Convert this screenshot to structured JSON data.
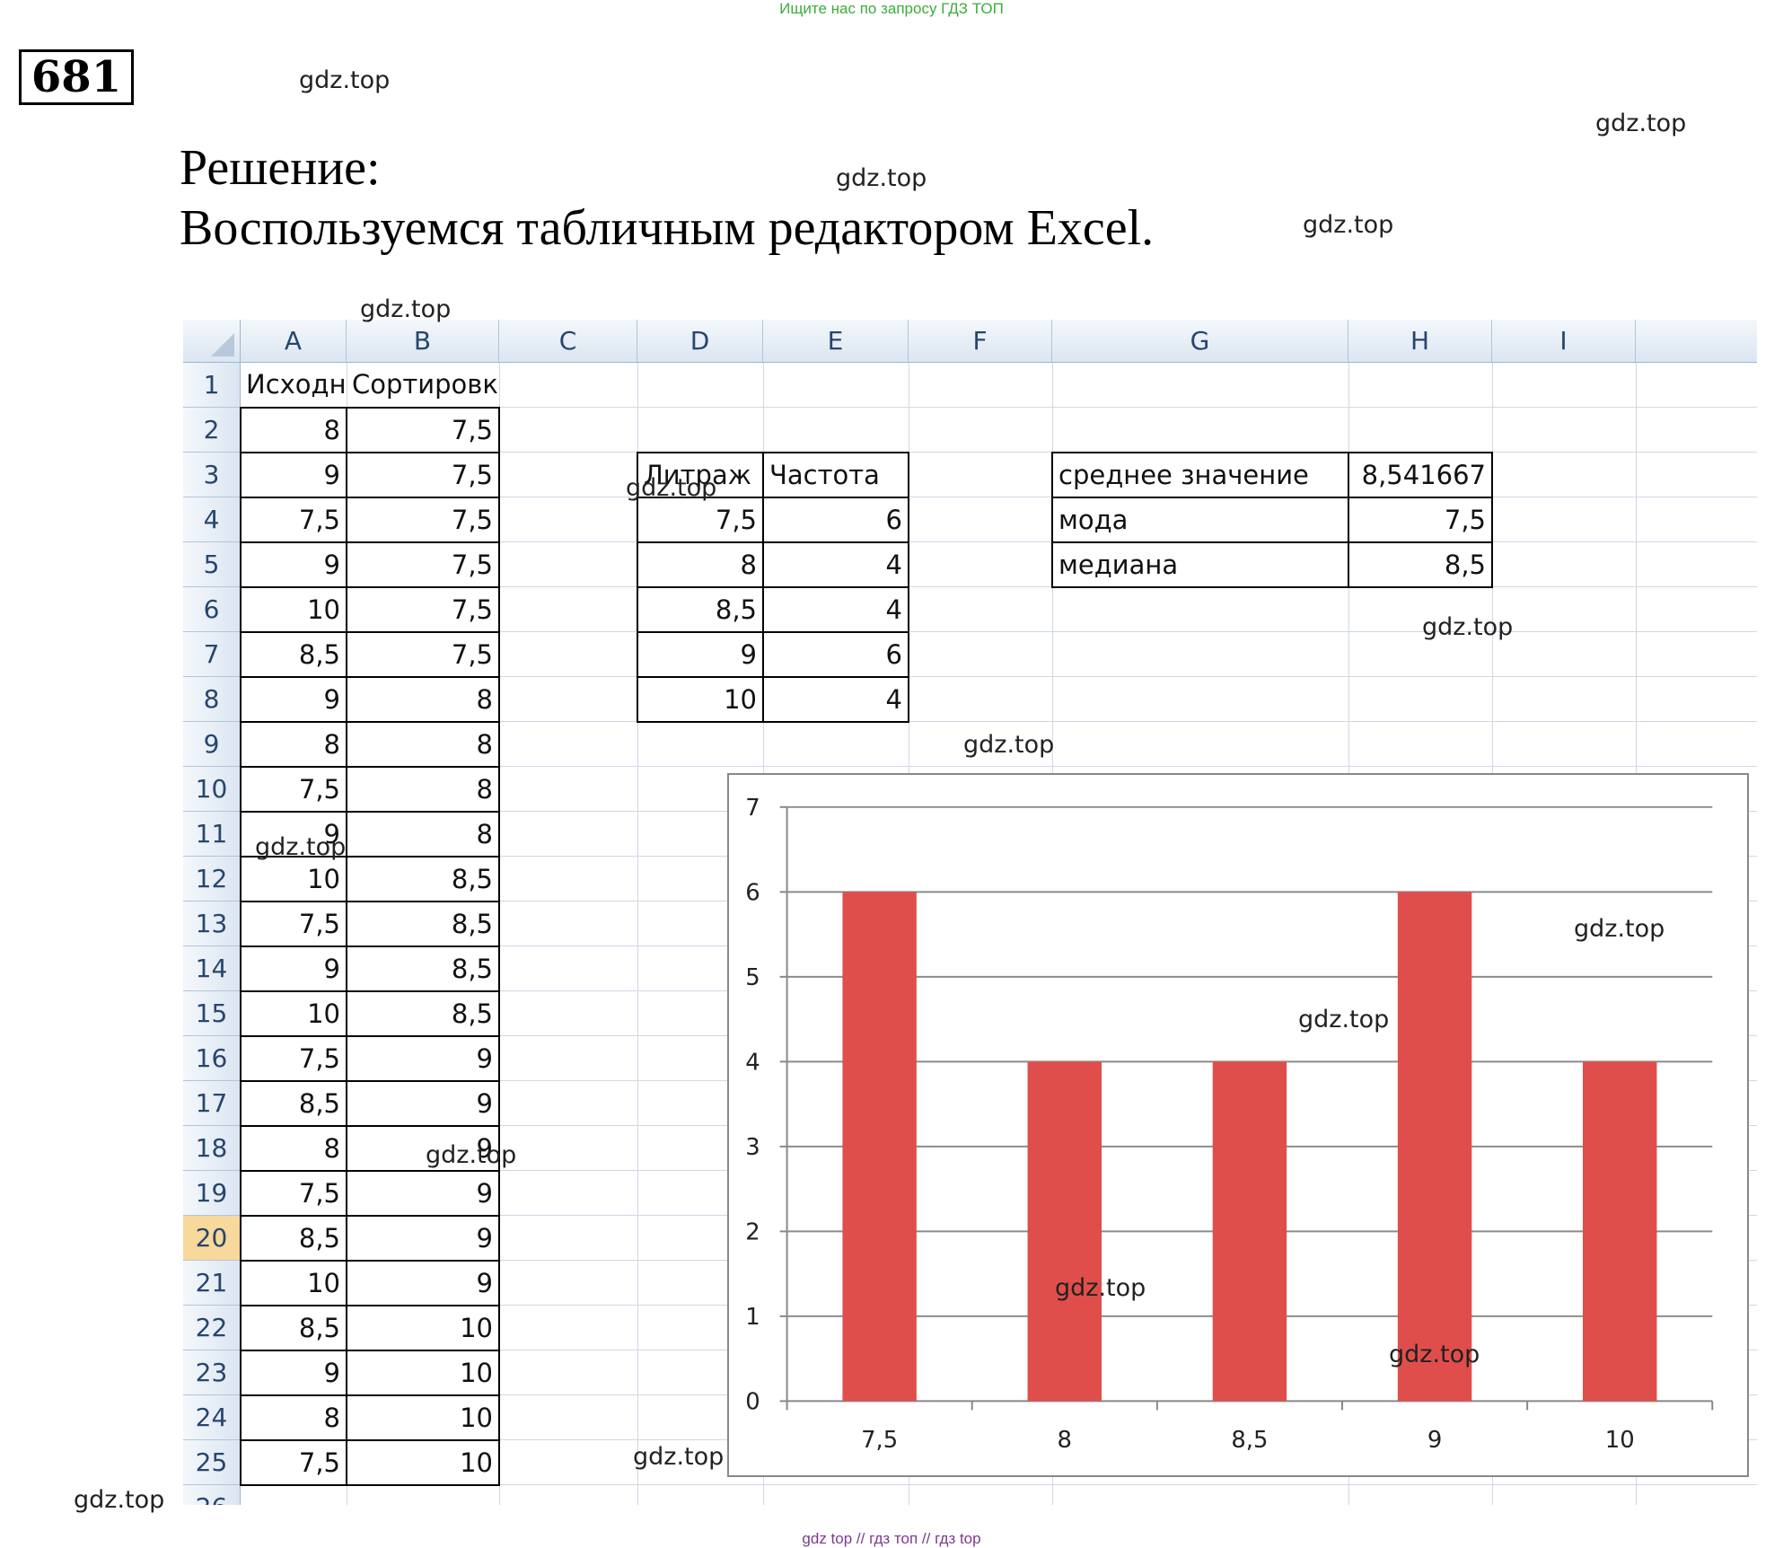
{
  "banner": "Ищите нас по запросу ГДЗ ТОП",
  "task_number": "681",
  "heading": {
    "line1": "Решение:",
    "line2": "Воспользуемся табличным редактором Excel."
  },
  "watermark": "gdz.top",
  "footer": "gdz top  //  гдз топ  //  гдз top",
  "sheet": {
    "columns": [
      "A",
      "B",
      "C",
      "D",
      "E",
      "F",
      "G",
      "H",
      "I"
    ],
    "rows": [
      "1",
      "2",
      "3",
      "4",
      "5",
      "6",
      "7",
      "8",
      "9",
      "10",
      "11",
      "12",
      "13",
      "14",
      "15",
      "16",
      "17",
      "18",
      "19",
      "20",
      "21",
      "22",
      "23",
      "24",
      "25"
    ],
    "partial_row": "26",
    "selected_row": "20",
    "header_a": "Исходный",
    "header_b": "Сортировка",
    "col_a": [
      "8",
      "9",
      "7,5",
      "9",
      "10",
      "8,5",
      "9",
      "8",
      "7,5",
      "9",
      "10",
      "7,5",
      "9",
      "10",
      "7,5",
      "8,5",
      "8",
      "7,5",
      "8,5",
      "10",
      "8,5",
      "9",
      "8",
      "7,5"
    ],
    "col_b": [
      "7,5",
      "7,5",
      "7,5",
      "7,5",
      "7,5",
      "7,5",
      "8",
      "8",
      "8",
      "8",
      "8,5",
      "8,5",
      "8,5",
      "8,5",
      "9",
      "9",
      "9",
      "9",
      "9",
      "9",
      "10",
      "10",
      "10",
      "10"
    ],
    "freq_table": {
      "header_d": "Литраж",
      "header_e": "Частота",
      "litrage": [
        "7,5",
        "8",
        "8,5",
        "9",
        "10"
      ],
      "frequency": [
        "6",
        "4",
        "4",
        "6",
        "4"
      ]
    },
    "stats": {
      "mean_label": "среднее значение",
      "mean_value": "8,541667",
      "mode_label": "мода",
      "mode_value": "7,5",
      "median_label": "медиана",
      "median_value": "8,5"
    }
  },
  "chart_data": {
    "type": "bar",
    "categories": [
      "7,5",
      "8",
      "8,5",
      "9",
      "10"
    ],
    "values": [
      6,
      4,
      4,
      6,
      4
    ],
    "title": "",
    "xlabel": "",
    "ylabel": "",
    "ylim": [
      0,
      7
    ],
    "yticks": [
      "0",
      "1",
      "2",
      "3",
      "4",
      "5",
      "6",
      "7"
    ],
    "grid": true,
    "legend": "none",
    "bar_color": "#e04e4b"
  }
}
